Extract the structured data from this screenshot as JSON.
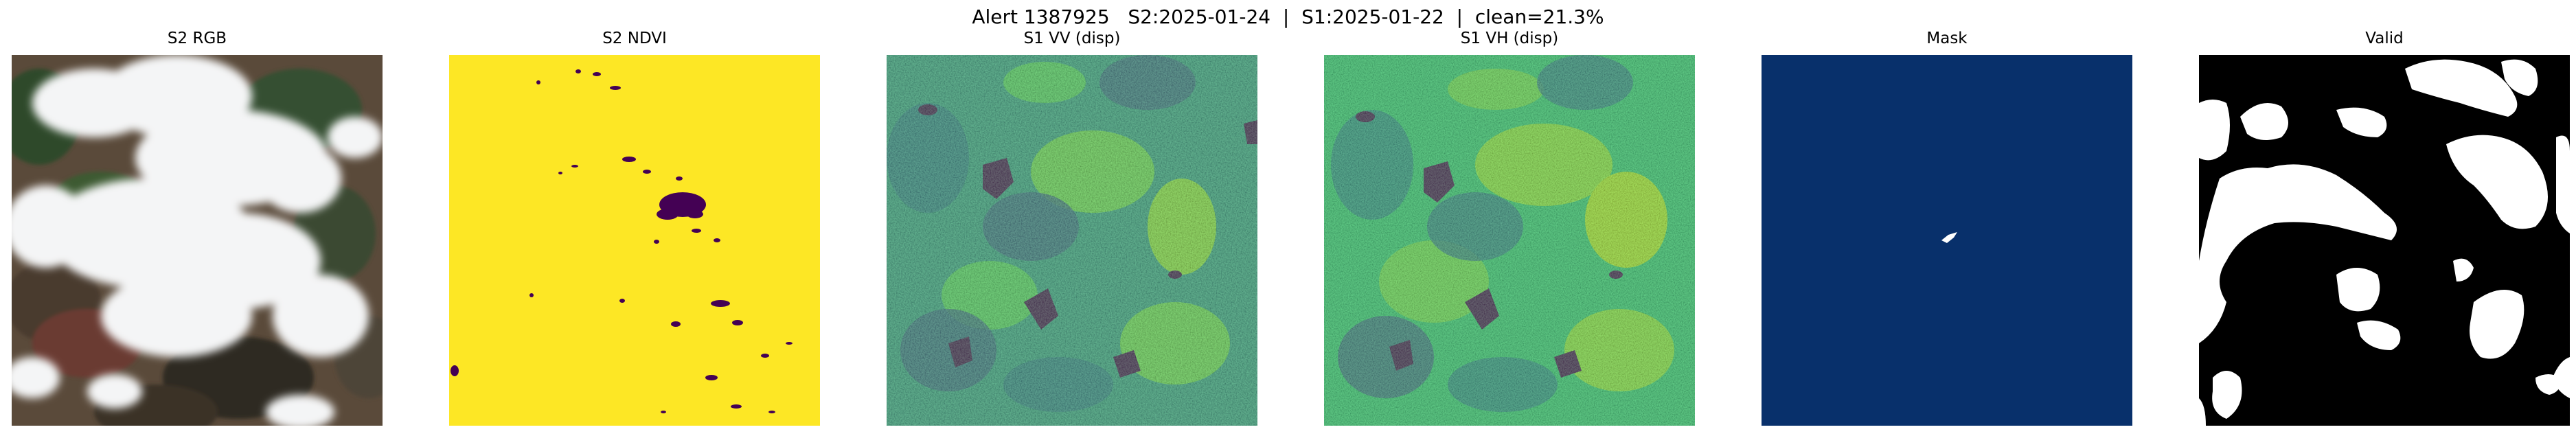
{
  "suptitle": "Alert 1387925   S2:2025-01-24  |  S1:2025-01-22  |  clean=21.3%",
  "panels": [
    {
      "title": "S2 RGB",
      "kind": "rgb"
    },
    {
      "title": "S2 NDVI",
      "kind": "ndvi",
      "colormap": "viridis"
    },
    {
      "title": "S1 VV (disp)",
      "kind": "sar",
      "colormap": "viridis"
    },
    {
      "title": "S1 VH (disp)",
      "kind": "sar",
      "colormap": "viridis"
    },
    {
      "title": "Mask",
      "kind": "mask",
      "colors": {
        "background": "#08306b",
        "foreground": "#ffffff"
      }
    },
    {
      "title": "Valid",
      "kind": "valid",
      "colors": {
        "background": "#000000",
        "foreground": "#ffffff"
      }
    }
  ]
}
